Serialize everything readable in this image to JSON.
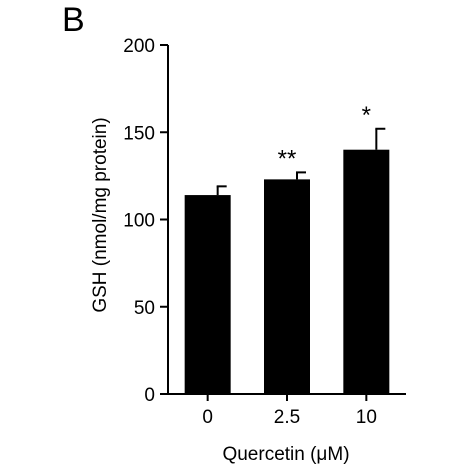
{
  "panel_label": "B",
  "chart_data": {
    "type": "bar",
    "categories": [
      "0",
      "2.5",
      "10"
    ],
    "values": [
      114,
      123,
      140
    ],
    "errors": [
      5,
      4,
      12
    ],
    "annotations": [
      "",
      "**",
      "*"
    ],
    "xlabel": "Quercetin (μM)",
    "ylabel": "GSH (nmol/mg protein)",
    "ylim": [
      0,
      200
    ],
    "yticks": [
      0,
      50,
      100,
      150,
      200
    ],
    "grid": false,
    "bar_color": "#000000"
  }
}
